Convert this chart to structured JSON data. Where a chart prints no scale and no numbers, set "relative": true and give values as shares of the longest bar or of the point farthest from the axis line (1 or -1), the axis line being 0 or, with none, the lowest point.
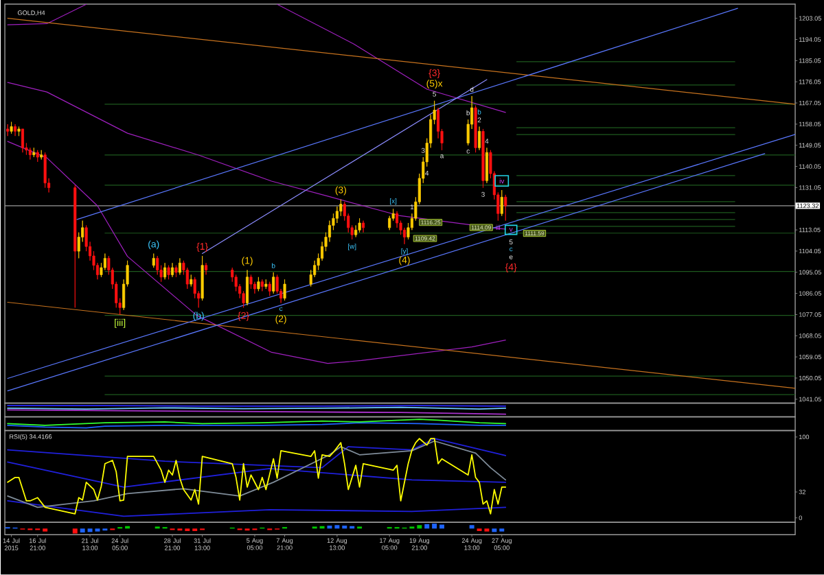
{
  "chart_data": [
    {
      "type": "candlestick",
      "title": "GOLD,H4",
      "x": [
        "2015-07-14T05:00",
        "2015-07-14T13:00",
        "2015-07-14T21:00",
        "2015-07-15T05:00",
        "2015-07-15T13:00",
        "2015-07-15T21:00",
        "2015-07-16T05:00",
        "2015-07-16T13:00",
        "2015-07-16T21:00",
        "2015-07-17T05:00",
        "2015-07-17T13:00",
        "2015-07-17T21:00",
        "2015-07-20T05:00",
        "2015-07-20T13:00",
        "2015-07-20T21:00",
        "2015-07-21T05:00",
        "2015-07-21T13:00",
        "2015-07-21T21:00",
        "2015-07-22T05:00",
        "2015-07-22T13:00",
        "2015-07-22T21:00",
        "2015-07-23T05:00",
        "2015-07-23T13:00",
        "2015-07-23T21:00",
        "2015-07-24T05:00",
        "2015-07-24T13:00",
        "2015-07-24T21:00",
        "2015-07-27T05:00",
        "2015-07-27T13:00",
        "2015-07-27T21:00",
        "2015-07-28T05:00",
        "2015-07-28T13:00",
        "2015-07-28T21:00",
        "2015-07-29T05:00",
        "2015-07-29T13:00",
        "2015-07-29T21:00",
        "2015-07-30T05:00",
        "2015-07-30T13:00",
        "2015-07-30T21:00",
        "2015-07-31T05:00",
        "2015-07-31T13:00",
        "2015-07-31T21:00",
        "2015-08-03T05:00",
        "2015-08-03T13:00",
        "2015-08-03T21:00",
        "2015-08-04T05:00",
        "2015-08-04T13:00",
        "2015-08-04T21:00",
        "2015-08-05T05:00",
        "2015-08-05T13:00",
        "2015-08-05T21:00",
        "2015-08-06T05:00",
        "2015-08-06T13:00",
        "2015-08-06T21:00",
        "2015-08-07T05:00",
        "2015-08-07T13:00",
        "2015-08-07T21:00",
        "2015-08-10T05:00",
        "2015-08-10T13:00",
        "2015-08-10T21:00",
        "2015-08-11T05:00",
        "2015-08-11T13:00",
        "2015-08-11T21:00",
        "2015-08-12T05:00",
        "2015-08-12T13:00",
        "2015-08-12T21:00",
        "2015-08-13T05:00",
        "2015-08-13T13:00",
        "2015-08-13T21:00",
        "2015-08-14T05:00",
        "2015-08-14T13:00",
        "2015-08-14T21:00",
        "2015-08-17T05:00",
        "2015-08-17T13:00",
        "2015-08-17T21:00",
        "2015-08-18T05:00",
        "2015-08-18T13:00",
        "2015-08-18T21:00",
        "2015-08-19T05:00",
        "2015-08-19T13:00",
        "2015-08-19T21:00",
        "2015-08-20T05:00",
        "2015-08-20T13:00",
        "2015-08-20T21:00",
        "2015-08-21T05:00",
        "2015-08-21T13:00",
        "2015-08-21T21:00",
        "2015-08-24T05:00",
        "2015-08-24T13:00",
        "2015-08-24T21:00",
        "2015-08-25T05:00",
        "2015-08-25T13:00",
        "2015-08-25T21:00",
        "2015-08-26T05:00",
        "2015-08-26T13:00",
        "2015-08-26T21:00",
        "2015-08-27T05:00",
        "2015-08-27T13:00"
      ],
      "ohlc": [
        [
          1156,
          1158,
          1153,
          1155
        ],
        [
          1155,
          1159,
          1154,
          1157
        ],
        [
          1157,
          1158,
          1153,
          1155
        ],
        [
          1155,
          1157,
          1153,
          1156
        ],
        [
          1156,
          1156,
          1146,
          1148
        ],
        [
          1148,
          1150,
          1145,
          1147
        ],
        [
          1147,
          1148,
          1143,
          1145
        ],
        [
          1145,
          1148,
          1144,
          1146
        ],
        [
          1146,
          1147,
          1142,
          1144
        ],
        [
          1144,
          1147,
          1143,
          1145
        ],
        [
          1145,
          1146,
          1131,
          1133
        ],
        [
          1133,
          1135,
          1129,
          1131
        ],
        [
          1131,
          1132,
          1080,
          1104
        ],
        [
          1104,
          1112,
          1101,
          1110
        ],
        [
          1110,
          1117,
          1108,
          1114
        ],
        [
          1114,
          1115,
          1104,
          1106
        ],
        [
          1106,
          1108,
          1100,
          1102
        ],
        [
          1102,
          1104,
          1096,
          1098
        ],
        [
          1098,
          1099,
          1092,
          1094
        ],
        [
          1094,
          1099,
          1093,
          1097
        ],
        [
          1097,
          1103,
          1096,
          1101
        ],
        [
          1101,
          1102,
          1094,
          1096
        ],
        [
          1096,
          1097,
          1088,
          1090
        ],
        [
          1090,
          1091,
          1080,
          1082
        ],
        [
          1082,
          1084,
          1077,
          1080
        ],
        [
          1080,
          1092,
          1079,
          1090
        ],
        [
          1090,
          1100,
          1089,
          1098
        ],
        [
          1098,
          1103,
          1097,
          1101
        ],
        [
          1101,
          1102,
          1094,
          1096
        ],
        [
          1096,
          1098,
          1091,
          1093
        ],
        [
          1093,
          1099,
          1092,
          1097
        ],
        [
          1097,
          1098,
          1092,
          1094
        ],
        [
          1094,
          1099,
          1093,
          1097
        ],
        [
          1097,
          1098,
          1093,
          1095
        ],
        [
          1095,
          1101,
          1094,
          1099
        ],
        [
          1099,
          1100,
          1094,
          1096
        ],
        [
          1096,
          1097,
          1088,
          1090
        ],
        [
          1090,
          1094,
          1089,
          1092
        ],
        [
          1092,
          1093,
          1084,
          1086
        ],
        [
          1086,
          1087,
          1080,
          1084
        ],
        [
          1084,
          1102,
          1083,
          1098
        ],
        [
          1098,
          1099,
          1094,
          1096
        ],
        [
          1096,
          1097,
          1091,
          1093
        ],
        [
          1093,
          1094,
          1087,
          1089
        ],
        [
          1089,
          1090,
          1084,
          1086
        ],
        [
          1086,
          1087,
          1080,
          1082
        ],
        [
          1082,
          1096,
          1081,
          1093
        ],
        [
          1093,
          1094,
          1088,
          1090
        ],
        [
          1090,
          1091,
          1086,
          1088
        ],
        [
          1088,
          1093,
          1087,
          1091
        ],
        [
          1091,
          1092,
          1087,
          1089
        ],
        [
          1089,
          1092,
          1088,
          1090
        ],
        [
          1090,
          1091,
          1085,
          1087
        ],
        [
          1087,
          1095,
          1086,
          1093
        ],
        [
          1093,
          1094,
          1086,
          1087
        ],
        [
          1087,
          1088,
          1082,
          1084
        ],
        [
          1084,
          1092,
          1083,
          1090
        ],
        [
          1090,
          1096,
          1089,
          1094
        ],
        [
          1094,
          1100,
          1093,
          1098
        ],
        [
          1098,
          1103,
          1096,
          1101
        ],
        [
          1101,
          1108,
          1100,
          1106
        ],
        [
          1106,
          1112,
          1104,
          1110
        ],
        [
          1110,
          1117,
          1108,
          1115
        ],
        [
          1115,
          1120,
          1113,
          1118
        ],
        [
          1118,
          1123,
          1116,
          1121
        ],
        [
          1121,
          1126,
          1119,
          1124
        ],
        [
          1124,
          1125,
          1117,
          1119
        ],
        [
          1119,
          1120,
          1112,
          1114
        ],
        [
          1114,
          1115,
          1109,
          1111
        ],
        [
          1111,
          1115,
          1110,
          1113
        ],
        [
          1113,
          1118,
          1112,
          1116
        ],
        [
          1116,
          1117,
          1112,
          1114
        ],
        [
          1114,
          1119,
          1113,
          1118
        ],
        [
          1118,
          1122,
          1117,
          1120
        ],
        [
          1120,
          1121,
          1114,
          1116
        ],
        [
          1116,
          1117,
          1111,
          1113
        ],
        [
          1113,
          1114,
          1107,
          1110
        ],
        [
          1110,
          1116,
          1109,
          1114
        ],
        [
          1114,
          1120,
          1113,
          1118
        ],
        [
          1118,
          1127,
          1117,
          1125
        ],
        [
          1125,
          1137,
          1124,
          1135
        ],
        [
          1135,
          1144,
          1133,
          1142
        ],
        [
          1142,
          1152,
          1140,
          1150
        ],
        [
          1150,
          1162,
          1148,
          1160
        ],
        [
          1160,
          1168,
          1158,
          1164
        ],
        [
          1164,
          1165,
          1152,
          1155
        ],
        [
          1155,
          1156,
          1147,
          1150
        ],
        [
          1150,
          1160,
          1149,
          1158
        ],
        [
          1158,
          1170,
          1156,
          1165
        ],
        [
          1165,
          1166,
          1146,
          1148
        ],
        [
          1148,
          1157,
          1147,
          1155
        ],
        [
          1155,
          1156,
          1131,
          1134
        ],
        [
          1134,
          1148,
          1133,
          1146
        ],
        [
          1146,
          1147,
          1135,
          1137
        ],
        [
          1137,
          1138,
          1126,
          1128
        ],
        [
          1128,
          1129,
          1117,
          1120
        ],
        [
          1120,
          1130,
          1119,
          1127
        ],
        [
          1127,
          1128,
          1117,
          1123.3
        ]
      ],
      "colors": [
        "#ff1010",
        "#ffcc00",
        "#ff1010",
        "#ffcc00",
        "#ff1010",
        "#ff1010",
        "#ff1010",
        "#ffcc00",
        "#ff1010",
        "#ffcc00",
        "#ff1010",
        "#ff1010",
        "#ff1010",
        "#ffcc00",
        "#ffcc00",
        "#ff1010",
        "#ff1010",
        "#ff1010",
        "#ff1010",
        "#ffcc00",
        "#ffcc00",
        "#ff1010",
        "#ff1010",
        "#ff1010",
        "#ff1010",
        "#ffcc00",
        "#ffcc00",
        "#ffcc00",
        "#ff1010",
        "#ff1010",
        "#ffcc00",
        "#ff1010",
        "#ffcc00",
        "#ff1010",
        "#ffcc00",
        "#ff1010",
        "#ff1010",
        "#ffcc00",
        "#ff1010",
        "#ff1010",
        "#ffcc00",
        "#ff1010",
        "#ff1010",
        "#ff1010",
        "#ff1010",
        "#ff1010",
        "#ffcc00",
        "#ff1010",
        "#ff1010",
        "#ffcc00",
        "#ff1010",
        "#ffcc00",
        "#ff1010",
        "#ffcc00",
        "#ff1010",
        "#ff1010",
        "#ffcc00",
        "#ffcc00",
        "#ffcc00",
        "#ffcc00",
        "#ffcc00",
        "#ffcc00",
        "#ffcc00",
        "#ffcc00",
        "#ffcc00",
        "#ffcc00",
        "#ff1010",
        "#ff1010",
        "#ff1010",
        "#ffcc00",
        "#ffcc00",
        "#ff1010",
        "#ffcc00",
        "#ffcc00",
        "#ff1010",
        "#ff1010",
        "#ff1010",
        "#ffcc00",
        "#ffcc00",
        "#ffcc00",
        "#ffcc00",
        "#ffcc00",
        "#ffcc00",
        "#ffcc00",
        "#ffcc00",
        "#ff1010",
        "#ff1010",
        "#ffcc00",
        "#ffcc00",
        "#ff1010",
        "#ffcc00",
        "#ff1010",
        "#ffcc00",
        "#ff1010",
        "#ff1010",
        "#ff1010",
        "#ffcc00",
        "#ff1010"
      ],
      "xlim": [
        "2015-07-13T23:00",
        "2015-09-22T08:00"
      ],
      "ylim": [
        1039.4,
        1209.1
      ],
      "yticks": [
        1041.05,
        1050.05,
        1059.05,
        1068.05,
        1077.05,
        1086.05,
        1095.05,
        1104.05,
        1113.05,
        1131.05,
        1140.05,
        1149.05,
        1158.05,
        1167.05,
        1176.05,
        1185.05,
        1194.05,
        1203.05
      ],
      "tick_labels": "y",
      "series": [
        {
          "type": "line",
          "x": [
            "2015-07-22T21:00",
            "2015-09-22T08:00"
          ],
          "values": [
            1166.5,
            1166.5
          ],
          "color": "#1e5a1e"
        },
        {
          "type": "line",
          "x": [
            "2015-07-22T21:00",
            "2015-09-22T08:00"
          ],
          "values": [
            1144.9,
            1144.9
          ],
          "color": "#1e5a1e"
        },
        {
          "type": "line",
          "x": [
            "2015-07-22T21:00",
            "2015-09-22T08:00"
          ],
          "values": [
            1132.1,
            1132.1
          ],
          "color": "#1e5a1e"
        },
        {
          "type": "line",
          "x": [
            "2015-07-22T21:00",
            "2015-09-22T08:00"
          ],
          "values": [
            1111.7,
            1111.7
          ],
          "color": "#1e5a1e"
        },
        {
          "type": "line",
          "x": [
            "2015-07-22T21:00",
            "2015-09-22T08:00"
          ],
          "values": [
            1095.4,
            1095.4
          ],
          "color": "#1e5a1e"
        },
        {
          "type": "line",
          "x": [
            "2015-07-22T21:00",
            "2015-09-22T08:00"
          ],
          "values": [
            1076.7,
            1076.7
          ],
          "color": "#1e5a1e"
        },
        {
          "type": "line",
          "x": [
            "2015-07-22T21:00",
            "2015-09-22T08:00"
          ],
          "values": [
            1050.9,
            1050.9
          ],
          "color": "#1e5a1e"
        },
        {
          "type": "line",
          "x": [
            "2015-07-22T21:00",
            "2015-09-22T08:00"
          ],
          "values": [
            1043,
            1043
          ],
          "color": "#1e5a1e"
        },
        {
          "type": "line",
          "x": [
            "2015-08-28T13:00",
            "2015-09-16T23:00"
          ],
          "values": [
            1184.6,
            1184.6
          ],
          "color": "#1e5a1e"
        },
        {
          "type": "line",
          "x": [
            "2015-08-28T13:00",
            "2015-09-16T23:00"
          ],
          "values": [
            1174.7,
            1174.7
          ],
          "color": "#1e5a1e"
        },
        {
          "type": "line",
          "x": [
            "2015-08-28T13:00",
            "2015-09-16T23:00"
          ],
          "values": [
            1156.5,
            1156.5
          ],
          "color": "#1e5a1e"
        },
        {
          "type": "line",
          "x": [
            "2015-08-28T13:00",
            "2015-09-16T23:00"
          ],
          "values": [
            1153.6,
            1153.6
          ],
          "color": "#1e5a1e"
        },
        {
          "type": "line",
          "x": [
            "2015-08-28T13:00",
            "2015-09-16T23:00"
          ],
          "values": [
            1136.2,
            1136.2
          ],
          "color": "#1e5a1e"
        },
        {
          "type": "line",
          "x": [
            "2015-08-28T13:00",
            "2015-09-16T23:00"
          ],
          "values": [
            1125.1,
            1125.1
          ],
          "color": "#1e5a1e"
        },
        {
          "type": "line",
          "x": [
            "2015-08-28T13:00",
            "2015-09-16T23:00"
          ],
          "values": [
            1120.4,
            1120.4
          ],
          "color": "#1e5a1e"
        },
        {
          "type": "line",
          "x": [
            "2015-08-28T13:00",
            "2015-09-16T23:00"
          ],
          "values": [
            1117.5,
            1117.5
          ],
          "color": "#1e5a1e"
        },
        {
          "type": "line",
          "x": [
            "2015-08-28T13:00",
            "2015-09-16T23:00"
          ],
          "values": [
            1114.6,
            1114.6
          ],
          "color": "#1e5a1e"
        },
        {
          "type": "line",
          "x": [
            "2015-07-14T05:00",
            "2015-07-17T17:00",
            "2015-07-21T05:00",
            "2015-07-28T05:00",
            "2015-08-07T05:00",
            "2015-08-14T01:00",
            "2015-08-20T13:00",
            "2015-08-27T13:00"
          ],
          "values": [
            1200.3,
            1200.8,
            1209,
            null,
            1209,
            1192.1,
            1172.9,
            1163
          ],
          "color": "#a020c0"
        },
        {
          "type": "line",
          "x": [
            "2015-07-14T05:00",
            "2015-07-17T17:00",
            "2015-07-24T21:00",
            "2015-07-31T05:00",
            "2015-08-06T17:00",
            "2015-08-11T17:00",
            "2015-08-18T01:00",
            "2015-08-26T21:00",
            "2015-08-27T13:00"
          ],
          "values": [
            1175.8,
            1171.7,
            1154.2,
            1144.9,
            1133.8,
            1127.4,
            1119.2,
            1113.7,
            1113.4
          ],
          "color": "#a020c0"
        },
        {
          "type": "line",
          "x": [
            "2015-07-14T05:00",
            "2015-07-17T17:00",
            "2015-07-22T05:00",
            "2015-07-24T21:00",
            "2015-07-31T01:00",
            "2015-08-06T17:00",
            "2015-08-11T17:00",
            "2015-08-14T17:00",
            "2015-08-24T13:00",
            "2015-08-27T13:00"
          ],
          "values": [
            1150.7,
            1143.7,
            1123.3,
            1101.8,
            1076.7,
            1061,
            1056.3,
            1057.5,
            1063.3,
            1066.2
          ],
          "color": "#a020c0"
        },
        {
          "type": "line",
          "x": [
            "2015-07-14T05:00",
            "2015-09-22T08:00"
          ],
          "values": [
            1203.1,
            1166.5
          ],
          "color": "#c8731e"
        },
        {
          "type": "line",
          "x": [
            "2015-07-14T05:00",
            "2015-09-22T08:00"
          ],
          "values": [
            1082.3,
            1045.7
          ],
          "color": "#c8731e"
        },
        {
          "type": "line",
          "x": [
            "2015-07-20T09:00",
            "2015-09-17T05:00"
          ],
          "values": [
            1117.5,
            1207.3
          ],
          "color": "#5a78ff"
        },
        {
          "type": "line",
          "x": [
            "2015-07-14T05:00",
            "2015-09-22T08:00"
          ],
          "values": [
            1049.9,
            1153.7
          ],
          "color": "#5a78ff"
        },
        {
          "type": "line",
          "x": [
            "2015-07-14T05:00",
            "2015-09-19T15:00"
          ],
          "values": [
            1044.6,
            1145.5
          ],
          "color": "#5a78ff"
        },
        {
          "type": "line",
          "x": [
            "2015-07-31T13:00",
            "2015-08-25T21:00"
          ],
          "values": [
            1103,
            1177
          ],
          "color": "#8c8cff"
        }
      ],
      "ref_lines": [
        {
          "axis": "y",
          "value": 1123.32,
          "label": "1123.32",
          "color": "#9a9a9a"
        }
      ],
      "annotations": [
        {
          "text": "[iii]",
          "x": "2015-07-24T05:00",
          "y": 1077
        },
        {
          "text": "(a)",
          "x": "2015-07-27T05:00",
          "y": 1103
        },
        {
          "text": "(b)",
          "x": "2015-07-31T05:00",
          "y": 1080
        },
        {
          "text": "{1}",
          "x": "2015-07-31T13:00",
          "y": 1102
        },
        {
          "text": "{2}",
          "x": "2015-08-04T05:00",
          "y": 1080
        },
        {
          "text": "(1)",
          "x": "2015-08-04T13:00",
          "y": 1096
        },
        {
          "text": "b",
          "x": "2015-08-06T21:00",
          "y": 1095
        },
        {
          "text": "c",
          "x": "2015-08-07T13:00",
          "y": 1082
        },
        {
          "text": "(2)",
          "x": "2015-08-07T13:00",
          "y": 1082
        },
        {
          "text": "(3)",
          "x": "2015-08-12T21:00",
          "y": 1126
        },
        {
          "text": "[w]",
          "x": "2015-08-13T21:00",
          "y": 1109
        },
        {
          "text": "[x]",
          "x": "2015-08-17T13:00",
          "y": 1122
        },
        {
          "text": "[y]",
          "x": "2015-08-18T13:00",
          "y": 1107
        },
        {
          "text": "(4)",
          "x": "2015-08-18T13:00",
          "y": 1107
        },
        {
          "text": "1",
          "x": "2015-08-19T05:00",
          "y": 1120
        },
        {
          "text": "3",
          "x": "2015-08-20T05:00",
          "y": 1144
        },
        {
          "text": "4",
          "x": "2015-08-20T13:00",
          "y": 1140
        },
        {
          "text": "5",
          "x": "2015-08-21T05:00",
          "y": 1168
        },
        {
          "text": "(5)x",
          "x": "2015-08-21T05:00",
          "y": 1168
        },
        {
          "text": "{3}",
          "x": "2015-08-21T05:00",
          "y": 1168
        },
        {
          "text": "a",
          "x": "2015-08-21T21:00",
          "y": 1147
        },
        {
          "text": "b",
          "x": "2015-08-24T05:00",
          "y": 1160
        },
        {
          "text": "c",
          "x": "2015-08-24T05:00",
          "y": 1149
        },
        {
          "text": "d",
          "x": "2015-08-24T13:00",
          "y": 1170
        },
        {
          "text": "2",
          "x": "2015-08-25T05:00",
          "y": 1157
        },
        {
          "text": "b",
          "x": "2015-08-25T05:00",
          "y": 1157
        },
        {
          "text": "3",
          "x": "2015-08-25T13:00",
          "y": 1131
        },
        {
          "text": "4",
          "x": "2015-08-25T21:00",
          "y": 1148
        },
        {
          "text": "iv",
          "x": "2015-08-27T05:00",
          "y": 1130
        },
        {
          "text": "iii",
          "x": "2015-08-26T21:00",
          "y": 1117
        },
        {
          "text": "1116.25",
          "x": "2015-08-20T21:00",
          "y": 1116.25
        },
        {
          "text": "1109.42",
          "x": "2015-08-20T09:00",
          "y": 1109.42
        },
        {
          "text": "1114.09",
          "x": "2015-08-25T09:00",
          "y": 1114.09
        },
        {
          "text": "1111.59",
          "x": "2015-08-30T03:00",
          "y": 1111.59
        },
        "v",
        "5",
        "c",
        "e",
        "{4}"
      ]
    },
    {
      "type": "line",
      "relative": true,
      "xlim": [
        "2015-07-13T23:00",
        "2015-09-22T08:00"
      ],
      "tick_labels": false,
      "series": [
        {
          "type": "line",
          "x": [
            "2015-07-14T05:00",
            "2015-07-22T21:00",
            "2015-07-31T13:00",
            "2015-08-11T05:00",
            "2015-08-19T21:00",
            "2015-08-27T13:00"
          ],
          "values": [
            1,
            1,
            0.95,
            0.95,
            1,
            0.95
          ],
          "color": "#2828ff"
        },
        {
          "type": "line",
          "x": [
            "2015-07-14T05:00",
            "2015-07-21T05:00",
            "2015-07-28T05:00",
            "2015-08-04T05:00",
            "2015-08-11T05:00",
            "2015-08-18T05:00",
            "2015-08-25T05:00",
            "2015-08-27T13:00"
          ],
          "values": [
            0.7,
            0.6,
            0.75,
            0.65,
            0.7,
            0.8,
            0.6,
            0.7
          ],
          "color": "#6ec8ff"
        },
        {
          "type": "line",
          "x": [
            "2015-07-14T05:00",
            "2015-07-24T13:00",
            "2015-08-05T21:00",
            "2015-08-18T05:00",
            "2015-08-27T13:00"
          ],
          "values": [
            0.5,
            0.4,
            0.3,
            0.2,
            0
          ],
          "color": "#aa33cc"
        }
      ]
    },
    {
      "type": "line",
      "relative": true,
      "xlim": [
        "2015-07-13T23:00",
        "2015-09-22T08:00"
      ],
      "tick_labels": false,
      "series": [
        {
          "type": "line",
          "x": [
            "2015-07-14T05:00",
            "2015-07-17T13:00",
            "2015-07-21T05:00",
            "2015-07-22T21:00",
            "2015-07-28T05:00",
            "2015-07-31T13:00",
            "2015-08-05T21:00",
            "2015-08-11T05:00",
            "2015-08-14T13:00",
            "2015-08-19T21:00",
            "2015-08-25T05:00",
            "2015-08-27T13:00"
          ],
          "values": [
            0.3,
            0.1,
            0,
            0.2,
            0.3,
            0.3,
            0.3,
            0.4,
            0.6,
            0.5,
            0.3,
            0.3
          ],
          "color": "#1e64ff"
        },
        {
          "type": "line",
          "x": [
            "2015-07-14T05:00",
            "2015-07-17T13:00",
            "2015-07-22T21:00",
            "2015-07-28T05:00",
            "2015-07-31T13:00",
            "2015-08-05T21:00",
            "2015-08-11T05:00",
            "2015-08-14T13:00",
            "2015-08-19T21:00",
            "2015-08-21T13:00",
            "2015-08-25T05:00",
            "2015-08-27T13:00"
          ],
          "values": [
            0.5,
            0.3,
            0.6,
            0.7,
            0.5,
            0.6,
            0.8,
            0.7,
            1,
            0.9,
            0.6,
            0.5
          ],
          "color": "#32ff32"
        }
      ]
    },
    {
      "type": "line",
      "title": "RSI(5) 34.4166",
      "xlim": [
        "2015-07-13T23:00",
        "2015-09-22T08:00"
      ],
      "ylim": [
        -5.6,
        108
      ],
      "yticks": [
        0,
        32,
        100
      ],
      "tick_labels": "y",
      "series": [
        {
          "type": "line",
          "x": [
            "2015-07-14T05:00",
            "2015-07-28T05:00",
            "2015-08-11T05:00",
            "2015-08-13T13:00",
            "2015-08-19T05:00",
            "2015-08-21T05:00",
            "2015-08-27T13:00"
          ],
          "values": [
            84,
            70,
            62,
            88,
            84,
            98,
            77
          ],
          "color": "#2020dc"
        },
        {
          "type": "line",
          "x": [
            "2015-07-14T05:00",
            "2015-07-24T13:00",
            "2015-08-06T13:00",
            "2015-08-19T05:00",
            "2015-08-27T13:00"
          ],
          "values": [
            69,
            38,
            61,
            47,
            44
          ],
          "color": "#2020dc"
        },
        {
          "type": "line",
          "x": [
            "2015-07-14T05:00",
            "2015-07-24T13:00",
            "2015-08-06T13:00",
            "2015-08-19T05:00",
            "2015-08-27T13:00"
          ],
          "values": [
            21,
            2,
            10,
            8,
            13
          ],
          "color": "#2020dc"
        },
        {
          "type": "line",
          "x": [
            "2015-07-14T05:00",
            "2015-07-16T21:00",
            "2015-07-21T21:00",
            "2015-07-24T21:00",
            "2015-07-29T21:00",
            "2015-08-03T21:00",
            "2015-08-06T21:00",
            "2015-08-11T21:00",
            "2015-08-12T21:00",
            "2015-08-14T13:00",
            "2015-08-19T05:00",
            "2015-08-21T05:00",
            "2015-08-24T21:00",
            "2015-08-26T05:00",
            "2015-08-27T13:00"
          ],
          "values": [
            27,
            13,
            21,
            30,
            36,
            27,
            44,
            78,
            88,
            78,
            83,
            95,
            80,
            62,
            47
          ],
          "color": "#7f8c99"
        },
        {
          "type": "line",
          "x": [
            "2015-07-14T05:00",
            "2015-07-14T21:00",
            "2015-07-15T05:00",
            "2015-07-15T21:00",
            "2015-07-16T05:00",
            "2015-07-16T21:00",
            "2015-07-17T13:00",
            "2015-07-20T05:00",
            "2015-07-20T13:00",
            "2015-07-20T21:00",
            "2015-07-21T05:00",
            "2015-07-21T21:00",
            "2015-07-22T05:00",
            "2015-07-22T13:00",
            "2015-07-22T21:00",
            "2015-07-23T13:00",
            "2015-07-23T21:00",
            "2015-07-24T05:00",
            "2015-07-24T13:00",
            "2015-07-24T21:00",
            "2015-07-27T05:00",
            "2015-07-27T21:00",
            "2015-07-28T05:00",
            "2015-07-28T13:00",
            "2015-07-28T21:00",
            "2015-07-29T05:00",
            "2015-07-29T13:00",
            "2015-07-29T21:00",
            "2015-07-30T13:00",
            "2015-07-30T21:00",
            "2015-07-31T05:00",
            "2015-07-31T13:00",
            "2015-08-03T05:00",
            "2015-08-03T13:00",
            "2015-08-03T21:00",
            "2015-08-04T05:00",
            "2015-08-04T13:00",
            "2015-08-04T21:00",
            "2015-08-05T13:00",
            "2015-08-05T21:00",
            "2015-08-06T05:00",
            "2015-08-06T21:00",
            "2015-08-07T05:00",
            "2015-08-07T13:00",
            "2015-08-10T05:00",
            "2015-08-10T13:00",
            "2015-08-10T21:00",
            "2015-08-11T05:00",
            "2015-08-11T21:00",
            "2015-08-12T05:00",
            "2015-08-12T21:00",
            "2015-08-13T05:00",
            "2015-08-13T13:00",
            "2015-08-14T05:00",
            "2015-08-14T13:00",
            "2015-08-14T21:00",
            "2015-08-17T13:00",
            "2015-08-17T21:00",
            "2015-08-18T05:00",
            "2015-08-18T21:00",
            "2015-08-19T05:00",
            "2015-08-19T13:00",
            "2015-08-19T21:00",
            "2015-08-20T13:00",
            "2015-08-20T21:00",
            "2015-08-21T05:00",
            "2015-08-21T13:00",
            "2015-08-21T21:00",
            "2015-08-24T05:00",
            "2015-08-24T13:00",
            "2015-08-24T21:00",
            "2015-08-25T05:00",
            "2015-08-25T13:00",
            "2015-08-25T21:00",
            "2015-08-26T05:00",
            "2015-08-26T13:00",
            "2015-08-26T21:00",
            "2015-08-27T05:00",
            "2015-08-27T13:00"
          ],
          "values": [
            44,
            50,
            50,
            21,
            21,
            25,
            13,
            5,
            25,
            22,
            44,
            35,
            22,
            39,
            67,
            71,
            57,
            21,
            22,
            76,
            76,
            59,
            44,
            59,
            53,
            71,
            49,
            35,
            22,
            35,
            17,
            76,
            67,
            50,
            22,
            67,
            38,
            53,
            35,
            50,
            35,
            73,
            49,
            83,
            76,
            83,
            49,
            78,
            76,
            81,
            93,
            67,
            35,
            65,
            38,
            67,
            59,
            65,
            21,
            67,
            84,
            93,
            98,
            90,
            98,
            98,
            67,
            73,
            53,
            78,
            50,
            44,
            17,
            21,
            5,
            35,
            17,
            38,
            38
          ],
          "color": "#ffff00"
        }
      ]
    },
    {
      "type": "bar",
      "relative": true,
      "x": [
        "2015-07-14T05:00",
        "2015-07-14T21:00",
        "2015-07-15T13:00",
        "2015-07-16T05:00",
        "2015-07-16T21:00",
        "2015-07-17T13:00",
        "2015-07-20T05:00",
        "2015-07-20T21:00",
        "2015-07-21T13:00",
        "2015-07-22T05:00",
        "2015-07-22T21:00",
        "2015-07-23T13:00",
        "2015-07-24T05:00",
        "2015-07-24T21:00",
        "2015-07-27T13:00",
        "2015-07-28T05:00",
        "2015-07-28T21:00",
        "2015-07-29T13:00",
        "2015-07-30T05:00",
        "2015-07-30T21:00",
        "2015-07-31T13:00",
        "2015-08-03T05:00",
        "2015-08-03T21:00",
        "2015-08-04T13:00",
        "2015-08-05T05:00",
        "2015-08-05T21:00",
        "2015-08-06T13:00",
        "2015-08-07T05:00",
        "2015-08-07T21:00",
        "2015-08-10T13:00",
        "2015-08-11T05:00",
        "2015-08-11T21:00",
        "2015-08-12T13:00",
        "2015-08-13T05:00",
        "2015-08-13T21:00",
        "2015-08-14T13:00",
        "2015-08-17T05:00",
        "2015-08-17T21:00",
        "2015-08-18T13:00",
        "2015-08-19T05:00",
        "2015-08-19T21:00",
        "2015-08-20T13:00",
        "2015-08-21T05:00",
        "2015-08-21T21:00",
        "2015-08-24T13:00",
        "2015-08-25T05:00",
        "2015-08-25T21:00",
        "2015-08-26T13:00",
        "2015-08-27T05:00"
      ],
      "values": [
        0.3,
        0.2,
        -0.2,
        -0.3,
        -0.3,
        -0.6,
        -1,
        -0.8,
        -0.7,
        -0.6,
        -0.4,
        -0.3,
        0.3,
        0.5,
        0.4,
        0.3,
        -0.3,
        -0.4,
        -0.5,
        -0.5,
        -0.3,
        0.2,
        -0.3,
        -0.4,
        -0.3,
        0.2,
        -0.3,
        -0.2,
        0.3,
        0.4,
        0.5,
        0.6,
        0.7,
        0.6,
        0.5,
        0.4,
        0.3,
        0.3,
        0.2,
        0.4,
        0.7,
        0.9,
        1,
        0.8,
        0.7,
        -0.5,
        -0.6,
        -0.7,
        -0.6
      ],
      "colors": [
        "#1e64ff",
        "#1e64ff",
        "#ff1010",
        "#ff1010",
        "#ff1010",
        "#ff1010",
        "#ff1010",
        "#1e64ff",
        "#1e64ff",
        "#1e64ff",
        "#1e64ff",
        "#ff1010",
        "#00c800",
        "#00c800",
        "#00c800",
        "#00c800",
        "#ff1010",
        "#ff1010",
        "#ff1010",
        "#ff1010",
        "#ff1010",
        "#00c800",
        "#ff1010",
        "#ff1010",
        "#ff1010",
        "#00c800",
        "#ff1010",
        "#ff1010",
        "#00c800",
        "#00c800",
        "#00c800",
        "#1e64ff",
        "#1e64ff",
        "#1e64ff",
        "#1e64ff",
        "#00c800",
        "#00c800",
        "#00c800",
        "#00c800",
        "#00c800",
        "#00c800",
        "#1e64ff",
        "#1e64ff",
        "#1e64ff",
        "#1e64ff",
        "#ff1010",
        "#ff1010",
        "#1e64ff",
        "#1e64ff"
      ],
      "xlim": [
        "2015-07-13T23:00",
        "2015-09-22T08:00"
      ],
      "xticks": [
        {
          "value": "2015-07-14T13:00",
          "label": "14 Jul 2015"
        },
        {
          "value": "2015-07-16T21:00",
          "label": "16 Jul 21:00"
        },
        {
          "value": "2015-07-21T13:00",
          "label": "21 Jul 13:00"
        },
        {
          "value": "2015-07-24T05:00",
          "label": "24 Jul 05:00"
        },
        {
          "value": "2015-07-28T21:00",
          "label": "28 Jul 21:00"
        },
        {
          "value": "2015-07-31T13:00",
          "label": "31 Jul 13:00"
        },
        {
          "value": "2015-08-05T05:00",
          "label": "5 Aug 05:00"
        },
        {
          "value": "2015-08-07T21:00",
          "label": "7 Aug 21:00"
        },
        {
          "value": "2015-08-12T13:00",
          "label": "12 Aug 13:00"
        },
        {
          "value": "2015-08-17T05:00",
          "label": "17 Aug 05:00"
        },
        {
          "value": "2015-08-19T21:00",
          "label": "19 Aug 21:00"
        },
        {
          "value": "2015-08-24T13:00",
          "label": "24 Aug 13:00"
        },
        {
          "value": "2015-08-27T05:00",
          "label": "27 Aug 05:00"
        }
      ],
      "tick_labels": "x"
    }
  ]
}
